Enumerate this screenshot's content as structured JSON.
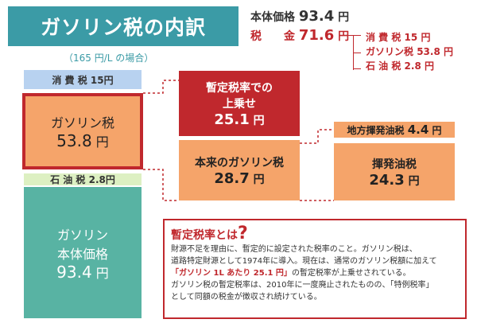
{
  "title": "ガソリン税の内訳",
  "subtitle": "（165 円/L の場合）",
  "totals": {
    "body_label": "本体価格",
    "body_value": "93.4",
    "tax_label": "税　　金",
    "tax_value": "71.6",
    "unit": "円"
  },
  "tax_items": [
    {
      "label": "消 費 税",
      "value": "15",
      "unit": "円"
    },
    {
      "label": "ガソリン税",
      "value": "53.8",
      "unit": "円"
    },
    {
      "label": "石 油 税",
      "value": "2.8",
      "unit": "円"
    }
  ],
  "left_bar": {
    "consumption": {
      "label": "消 費 税",
      "value": "15",
      "unit": "円"
    },
    "gasoline": {
      "label": "ガソリン税",
      "value": "53.8",
      "unit": "円"
    },
    "oil": {
      "label": "石 油 税",
      "value": "2.8",
      "unit": "円"
    },
    "body": {
      "label1": "ガソリン",
      "label2": "本体価格",
      "value": "93.4",
      "unit": "円"
    }
  },
  "middle": {
    "temp": {
      "label1": "暫定税率での",
      "label2": "上乗せ",
      "value": "25.1",
      "unit": "円"
    },
    "orig": {
      "label": "本来のガソリン税",
      "value": "28.7",
      "unit": "円"
    }
  },
  "right": {
    "local": {
      "label": "地方揮発油税",
      "value": "4.4",
      "unit": "円"
    },
    "vol": {
      "label": "揮発油税",
      "value": "24.3",
      "unit": "円"
    }
  },
  "info": {
    "heading": "暫定税率とは",
    "q": "?",
    "line1": "財源不足を理由に、暫定的に設定された税率のこと。ガソリン税は、",
    "line2": "道路特定財源として1974年に導入。現在は、通常のガソリン税額に加えて",
    "line3a": "「ガソリン 1L あたり 25.1 円」",
    "line3b": "の暫定税率が上乗せされている。",
    "line4": "ガソリン税の暫定税率は、2010年に一度廃止されたものの、「特例税率」",
    "line5": "として同額の税金が徴収され続けている。"
  },
  "colors": {
    "teal": "#3b9ba6",
    "red": "#c0282d",
    "orange": "#f5a46a",
    "green": "#58b3a3",
    "blue": "#b8d2f0",
    "lightgreen": "#ddf0c2"
  }
}
